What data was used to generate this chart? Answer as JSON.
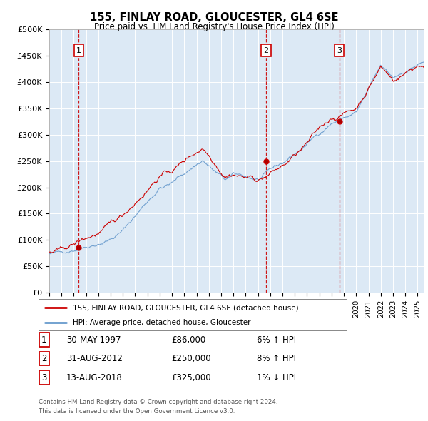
{
  "title": "155, FINLAY ROAD, GLOUCESTER, GL4 6SE",
  "subtitle": "Price paid vs. HM Land Registry's House Price Index (HPI)",
  "ylim": [
    0,
    500000
  ],
  "yticks": [
    0,
    50000,
    100000,
    150000,
    200000,
    250000,
    300000,
    350000,
    400000,
    450000,
    500000
  ],
  "ytick_labels": [
    "£0",
    "£50K",
    "£100K",
    "£150K",
    "£200K",
    "£250K",
    "£300K",
    "£350K",
    "£400K",
    "£450K",
    "£500K"
  ],
  "xlim_start": 1995.0,
  "xlim_end": 2025.5,
  "plot_bg_color": "#dce9f5",
  "fig_bg_color": "#ffffff",
  "grid_color": "#ffffff",
  "sale_dates": [
    1997.41,
    2012.67,
    2018.62
  ],
  "sale_prices": [
    86000,
    250000,
    325000
  ],
  "sale_labels": [
    "1",
    "2",
    "3"
  ],
  "sale_date_strings": [
    "30-MAY-1997",
    "31-AUG-2012",
    "13-AUG-2018"
  ],
  "sale_price_strings": [
    "£86,000",
    "£250,000",
    "£325,000"
  ],
  "sale_hpi_strings": [
    "6% ↑ HPI",
    "8% ↑ HPI",
    "1% ↓ HPI"
  ],
  "hpi_line_color": "#6699cc",
  "price_line_color": "#cc0000",
  "dashed_line_color": "#cc0000",
  "legend_line1": "155, FINLAY ROAD, GLOUCESTER, GL4 6SE (detached house)",
  "legend_line2": "HPI: Average price, detached house, Gloucester",
  "footer_line1": "Contains HM Land Registry data © Crown copyright and database right 2024.",
  "footer_line2": "This data is licensed under the Open Government Licence v3.0."
}
